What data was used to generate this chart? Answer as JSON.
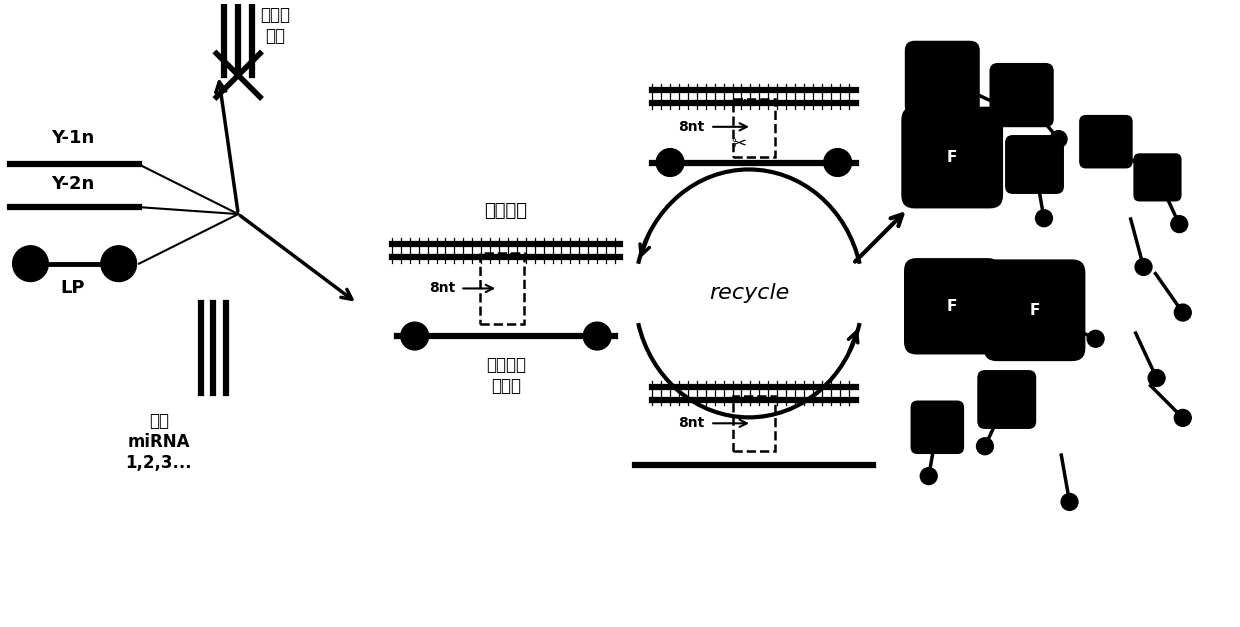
{
  "bg_color": "#ffffff",
  "text_color": "#000000",
  "line_color": "#000000",
  "labels": {
    "y1n": "Y-1n",
    "y2n": "Y-2n",
    "lp": "LP",
    "non_target": "非目标\n核酸",
    "target_mirna": "目标\nmiRNA\n1,2,3...",
    "bridge": "桥联结构",
    "nick": "切口酶识\n别序列",
    "recycle": "recycle",
    "8nt": "8nt"
  },
  "figsize": [
    12.4,
    6.27
  ],
  "dpi": 100
}
